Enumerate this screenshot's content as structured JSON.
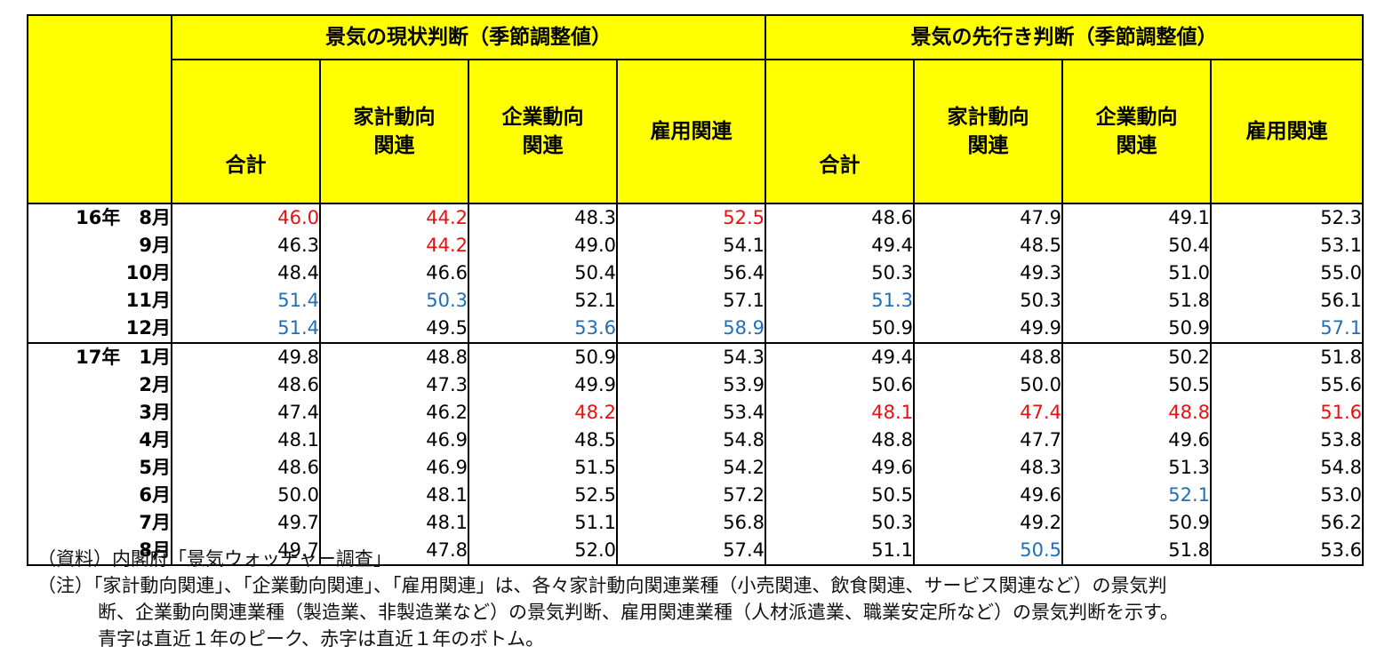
{
  "headers": {
    "current_group": "景気の現状判断（季節調整値）",
    "outlook_group": "景気の先行き判断（季節調整値）",
    "total": "合計",
    "household_l1": "家計動向",
    "household_l2": "関連",
    "corporate_l1": "企業動向",
    "corporate_l2": "関連",
    "employment": "雇用関連"
  },
  "rows": [
    {
      "label": "16年　8月",
      "v": [
        {
          "t": "46.0",
          "c": "red"
        },
        {
          "t": "44.2",
          "c": "red"
        },
        {
          "t": "48.3",
          "c": ""
        },
        {
          "t": "52.5",
          "c": "red"
        },
        {
          "t": "48.6",
          "c": ""
        },
        {
          "t": "47.9",
          "c": ""
        },
        {
          "t": "49.1",
          "c": ""
        },
        {
          "t": "52.3",
          "c": ""
        }
      ]
    },
    {
      "label": "9月",
      "v": [
        {
          "t": "46.3",
          "c": ""
        },
        {
          "t": "44.2",
          "c": "red"
        },
        {
          "t": "49.0",
          "c": ""
        },
        {
          "t": "54.1",
          "c": ""
        },
        {
          "t": "49.4",
          "c": ""
        },
        {
          "t": "48.5",
          "c": ""
        },
        {
          "t": "50.4",
          "c": ""
        },
        {
          "t": "53.1",
          "c": ""
        }
      ]
    },
    {
      "label": "10月",
      "v": [
        {
          "t": "48.4",
          "c": ""
        },
        {
          "t": "46.6",
          "c": ""
        },
        {
          "t": "50.4",
          "c": ""
        },
        {
          "t": "56.4",
          "c": ""
        },
        {
          "t": "50.3",
          "c": ""
        },
        {
          "t": "49.3",
          "c": ""
        },
        {
          "t": "51.0",
          "c": ""
        },
        {
          "t": "55.0",
          "c": ""
        }
      ]
    },
    {
      "label": "11月",
      "v": [
        {
          "t": "51.4",
          "c": "blue"
        },
        {
          "t": "50.3",
          "c": "blue"
        },
        {
          "t": "52.1",
          "c": ""
        },
        {
          "t": "57.1",
          "c": ""
        },
        {
          "t": "51.3",
          "c": "blue"
        },
        {
          "t": "50.3",
          "c": ""
        },
        {
          "t": "51.8",
          "c": ""
        },
        {
          "t": "56.1",
          "c": ""
        }
      ]
    },
    {
      "label": "12月",
      "v": [
        {
          "t": "51.4",
          "c": "blue"
        },
        {
          "t": "49.5",
          "c": ""
        },
        {
          "t": "53.6",
          "c": "blue"
        },
        {
          "t": "58.9",
          "c": "blue"
        },
        {
          "t": "50.9",
          "c": ""
        },
        {
          "t": "49.9",
          "c": ""
        },
        {
          "t": "50.9",
          "c": ""
        },
        {
          "t": "57.1",
          "c": "blue"
        }
      ]
    },
    {
      "label": "17年　1月",
      "v": [
        {
          "t": "49.8",
          "c": ""
        },
        {
          "t": "48.8",
          "c": ""
        },
        {
          "t": "50.9",
          "c": ""
        },
        {
          "t": "54.3",
          "c": ""
        },
        {
          "t": "49.4",
          "c": ""
        },
        {
          "t": "48.8",
          "c": ""
        },
        {
          "t": "50.2",
          "c": ""
        },
        {
          "t": "51.8",
          "c": ""
        }
      ]
    },
    {
      "label": "2月",
      "v": [
        {
          "t": "48.6",
          "c": ""
        },
        {
          "t": "47.3",
          "c": ""
        },
        {
          "t": "49.9",
          "c": ""
        },
        {
          "t": "53.9",
          "c": ""
        },
        {
          "t": "50.6",
          "c": ""
        },
        {
          "t": "50.0",
          "c": ""
        },
        {
          "t": "50.5",
          "c": ""
        },
        {
          "t": "55.6",
          "c": ""
        }
      ]
    },
    {
      "label": "3月",
      "v": [
        {
          "t": "47.4",
          "c": ""
        },
        {
          "t": "46.2",
          "c": ""
        },
        {
          "t": "48.2",
          "c": "red"
        },
        {
          "t": "53.4",
          "c": ""
        },
        {
          "t": "48.1",
          "c": "red"
        },
        {
          "t": "47.4",
          "c": "red"
        },
        {
          "t": "48.8",
          "c": "red"
        },
        {
          "t": "51.6",
          "c": "red"
        }
      ]
    },
    {
      "label": "4月",
      "v": [
        {
          "t": "48.1",
          "c": ""
        },
        {
          "t": "46.9",
          "c": ""
        },
        {
          "t": "48.5",
          "c": ""
        },
        {
          "t": "54.8",
          "c": ""
        },
        {
          "t": "48.8",
          "c": ""
        },
        {
          "t": "47.7",
          "c": ""
        },
        {
          "t": "49.6",
          "c": ""
        },
        {
          "t": "53.8",
          "c": ""
        }
      ]
    },
    {
      "label": "5月",
      "v": [
        {
          "t": "48.6",
          "c": ""
        },
        {
          "t": "46.9",
          "c": ""
        },
        {
          "t": "51.5",
          "c": ""
        },
        {
          "t": "54.2",
          "c": ""
        },
        {
          "t": "49.6",
          "c": ""
        },
        {
          "t": "48.3",
          "c": ""
        },
        {
          "t": "51.3",
          "c": ""
        },
        {
          "t": "54.8",
          "c": ""
        }
      ]
    },
    {
      "label": "6月",
      "v": [
        {
          "t": "50.0",
          "c": ""
        },
        {
          "t": "48.1",
          "c": ""
        },
        {
          "t": "52.5",
          "c": ""
        },
        {
          "t": "57.2",
          "c": ""
        },
        {
          "t": "50.5",
          "c": ""
        },
        {
          "t": "49.6",
          "c": ""
        },
        {
          "t": "52.1",
          "c": "blue"
        },
        {
          "t": "53.0",
          "c": ""
        }
      ]
    },
    {
      "label": "7月",
      "v": [
        {
          "t": "49.7",
          "c": ""
        },
        {
          "t": "48.1",
          "c": ""
        },
        {
          "t": "51.1",
          "c": ""
        },
        {
          "t": "56.8",
          "c": ""
        },
        {
          "t": "50.3",
          "c": ""
        },
        {
          "t": "49.2",
          "c": ""
        },
        {
          "t": "50.9",
          "c": ""
        },
        {
          "t": "56.2",
          "c": ""
        }
      ]
    },
    {
      "label": "8月",
      "v": [
        {
          "t": "49.7",
          "c": ""
        },
        {
          "t": "47.8",
          "c": ""
        },
        {
          "t": "52.0",
          "c": ""
        },
        {
          "t": "57.4",
          "c": ""
        },
        {
          "t": "51.1",
          "c": ""
        },
        {
          "t": "50.5",
          "c": "blue"
        },
        {
          "t": "51.8",
          "c": ""
        },
        {
          "t": "53.6",
          "c": ""
        }
      ]
    }
  ],
  "colors": {
    "red": "#e8100e",
    "blue": "#1f6fb8",
    "header_bg": "#ffff00"
  },
  "notes": {
    "source": "（資料）内閣府「景気ウォッチャー調査」",
    "note_l1": "（注）「家計動向関連」、「企業動向関連」、「雇用関連」は、各々家計動向関連業種（小売関連、飲食関連、サービス関連など）の景気判",
    "note_l2": "断、企業動向関連業種（製造業、非製造業など）の景気判断、雇用関連業種（人材派遣業、職業安定所など）の景気判断を示す。",
    "note_l3": "青字は直近１年のピーク、赤字は直近１年のボトム。"
  }
}
